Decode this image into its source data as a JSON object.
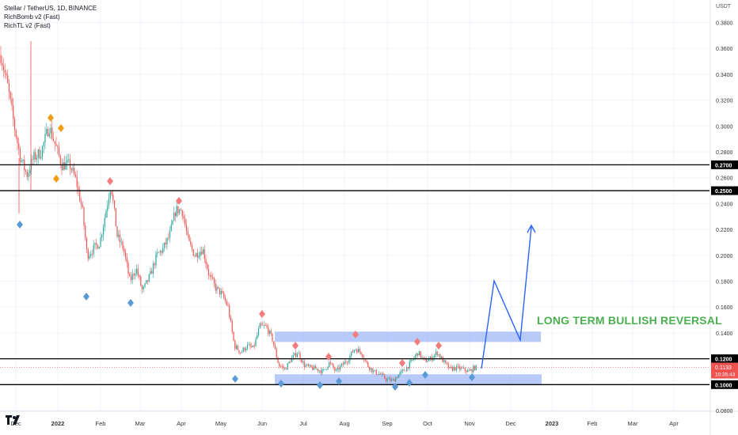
{
  "legend": {
    "symbol_line": "Stellar / TetherUS, 1D, BINANCE",
    "indicator_1": "RichBomb v2 (Fast)",
    "indicator_2": "RichTL v2 (Fast)"
  },
  "annotation": "LONG TERM BULLISH REVERSAL",
  "price_axis_unit": "USDT",
  "countdown": "10:35:43",
  "colors": {
    "up": "#26a69a",
    "down": "#ef5350",
    "zone": "#9fb8f8",
    "arrow": "#2962ff",
    "sell_marker": "#f57c7c",
    "buy_marker": "#5b9bd5",
    "early_sell_marker": "#f39c12",
    "annotation": "#4caf50"
  },
  "chart_data": {
    "type": "candlestick",
    "symbol": "Stellar / TetherUS",
    "interval": "1D",
    "exchange": "BINANCE",
    "x_ticks": [
      "Dec",
      "2022",
      "Feb",
      "Mar",
      "Apr",
      "May",
      "Jun",
      "Jul",
      "Aug",
      "Sep",
      "Oct",
      "Nov",
      "Dec",
      "2023",
      "Feb",
      "Mar",
      "Apr"
    ],
    "y_ticks": [
      "0.0800",
      "0.1000",
      "0.1200",
      "0.1400",
      "0.1600",
      "0.1800",
      "0.2000",
      "0.2200",
      "0.2400",
      "0.2600",
      "0.2800",
      "0.3000",
      "0.3200",
      "0.3400",
      "0.3600",
      "0.3800"
    ],
    "ylim": [
      0.072,
      0.392
    ],
    "horizontal_levels": [
      {
        "price": 0.27,
        "label": "0.2700"
      },
      {
        "price": 0.25,
        "label": "0.2500"
      },
      {
        "price": 0.12,
        "label": "0.1200"
      },
      {
        "price": 0.1,
        "label": "0.1000"
      }
    ],
    "last_price": {
      "price": 0.1133,
      "label": "0.1133"
    },
    "zones": [
      {
        "from": "Jun",
        "to": "Dec",
        "low": 0.133,
        "high": 0.141
      },
      {
        "from": "Jun",
        "to": "Dec",
        "low": 0.0995,
        "high": 0.108
      }
    ],
    "projection_path": [
      {
        "x": "Nov",
        "price": 0.113
      },
      {
        "x": "Nov",
        "price": 0.179
      },
      {
        "x": "Dec",
        "price": 0.133
      },
      {
        "x": "Dec",
        "price": 0.222
      }
    ],
    "annotation": "LONG TERM BULLISH REVERSAL",
    "close_series": [
      {
        "x": "Dec",
        "price": 0.355
      },
      {
        "x": "Dec",
        "price": 0.3
      },
      {
        "x": "Dec",
        "price": 0.265
      },
      {
        "x": "2022",
        "price": 0.295
      },
      {
        "x": "2022",
        "price": 0.27
      },
      {
        "x": "2022",
        "price": 0.262
      },
      {
        "x": "Feb",
        "price": 0.2
      },
      {
        "x": "Feb",
        "price": 0.21
      },
      {
        "x": "Feb",
        "price": 0.255
      },
      {
        "x": "Feb",
        "price": 0.205
      },
      {
        "x": "Mar",
        "price": 0.19
      },
      {
        "x": "Mar",
        "price": 0.178
      },
      {
        "x": "Mar",
        "price": 0.195
      },
      {
        "x": "Apr",
        "price": 0.24
      },
      {
        "x": "Apr",
        "price": 0.215
      },
      {
        "x": "Apr",
        "price": 0.205
      },
      {
        "x": "May",
        "price": 0.17
      },
      {
        "x": "May",
        "price": 0.125
      },
      {
        "x": "May",
        "price": 0.135
      },
      {
        "x": "Jun",
        "price": 0.15
      },
      {
        "x": "Jun",
        "price": 0.11
      },
      {
        "x": "Jul",
        "price": 0.112
      },
      {
        "x": "Jul",
        "price": 0.12
      },
      {
        "x": "Aug",
        "price": 0.128
      },
      {
        "x": "Aug",
        "price": 0.11
      },
      {
        "x": "Sep",
        "price": 0.103
      },
      {
        "x": "Sep",
        "price": 0.118
      },
      {
        "x": "Oct",
        "price": 0.128
      },
      {
        "x": "Oct",
        "price": 0.115
      },
      {
        "x": "Nov",
        "price": 0.1133
      }
    ],
    "sell_markers": [
      {
        "x": "2022",
        "price": 0.307
      },
      {
        "x": "2022",
        "price": 0.299
      },
      {
        "x": "Feb",
        "price": 0.258
      },
      {
        "x": "Apr",
        "price": 0.243
      },
      {
        "x": "Jun",
        "price": 0.155
      },
      {
        "x": "Jul",
        "price": 0.13
      },
      {
        "x": "Jul",
        "price": 0.12
      },
      {
        "x": "Aug",
        "price": 0.139
      },
      {
        "x": "Aug",
        "price": 0.12
      },
      {
        "x": "Sep",
        "price": 0.117
      },
      {
        "x": "Oct",
        "price": 0.133
      },
      {
        "x": "Oct",
        "price": 0.13
      }
    ],
    "buy_markers": [
      {
        "x": "Dec",
        "price": 0.224
      },
      {
        "x": "2022",
        "price": 0.26
      },
      {
        "x": "Feb",
        "price": 0.168
      },
      {
        "x": "Mar",
        "price": 0.162
      },
      {
        "x": "May",
        "price": 0.104
      },
      {
        "x": "Jun",
        "price": 0.102
      },
      {
        "x": "Jul",
        "price": 0.099
      },
      {
        "x": "Jul",
        "price": 0.103
      },
      {
        "x": "Sep",
        "price": 0.098
      },
      {
        "x": "Sep",
        "price": 0.101
      },
      {
        "x": "Oct",
        "price": 0.106
      },
      {
        "x": "Nov",
        "price": 0.105
      }
    ]
  }
}
